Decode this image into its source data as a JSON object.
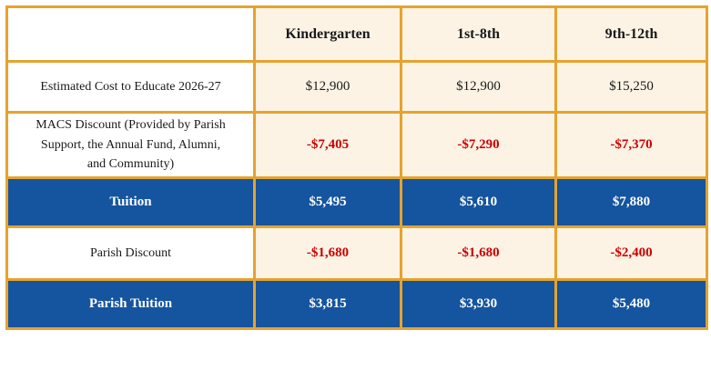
{
  "colors": {
    "border_gold": "#E5A32E",
    "cell_cream": "#FCF3E5",
    "highlight_blue": "#15549E",
    "discount_red": "#CC0000",
    "highlight_text": "#ffffff"
  },
  "table": {
    "columns": [
      "",
      "Kindergarten",
      "1st-8th",
      "9th-12th"
    ],
    "rows": [
      {
        "label": "Estimated Cost to Educate 2026-27",
        "type": "normal",
        "values": [
          "$12,900",
          "$12,900",
          "$15,250"
        ]
      },
      {
        "label": "MACS Discount (Provided by Parish Support, the Annual Fund, Alumni, and Community)",
        "type": "discount",
        "values": [
          "-$7,405",
          "-$7,290",
          "-$7,370"
        ]
      },
      {
        "label": "Tuition",
        "type": "highlight",
        "values": [
          "$5,495",
          "$5,610",
          "$7,880"
        ]
      },
      {
        "label": "Parish Discount",
        "type": "discount",
        "values": [
          "-$1,680",
          "-$1,680",
          "-$2,400"
        ]
      },
      {
        "label": "Parish Tuition",
        "type": "highlight",
        "values": [
          "$3,815",
          "$3,930",
          "$5,480"
        ]
      }
    ]
  }
}
